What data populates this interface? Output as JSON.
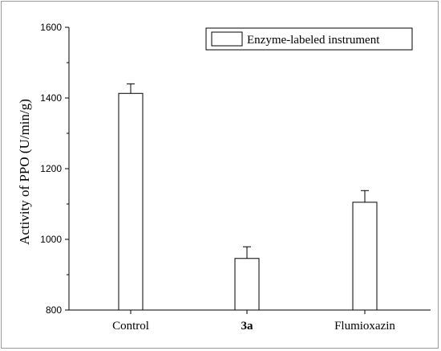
{
  "chart_data": {
    "type": "bar",
    "title": "",
    "xlabel": "",
    "ylabel": "Activity of PPO (U/min/g)",
    "categories": [
      "Control",
      "3a",
      "Flumioxazin"
    ],
    "category_bold": [
      false,
      true,
      false
    ],
    "series": [
      {
        "name": "Enzyme-labeled instrument",
        "values": [
          1413,
          946,
          1105
        ],
        "errors": [
          27,
          33,
          33
        ]
      }
    ],
    "ylim": [
      800,
      1600
    ],
    "yticks": [
      800,
      1000,
      1200,
      1400,
      1600
    ],
    "grid": false,
    "legend_position": "top-right",
    "colors": {
      "bar_fill": "#ffffff",
      "bar_stroke": "#000000",
      "axis": "#000000",
      "frame": "#9a9a9a"
    }
  }
}
